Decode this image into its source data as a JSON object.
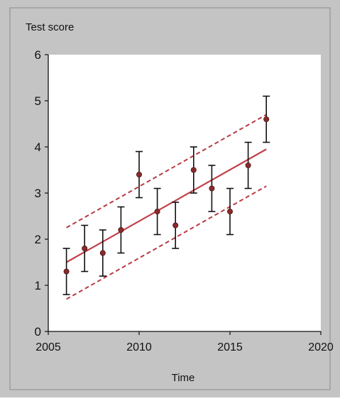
{
  "chart_data": {
    "type": "scatter",
    "ylabel": "Test score",
    "xlabel": "Time",
    "xlim": [
      2005,
      2020
    ],
    "ylim": [
      0,
      6
    ],
    "x_ticks": [
      2005,
      2010,
      2015,
      2020
    ],
    "y_ticks": [
      0,
      1,
      2,
      3,
      4,
      5,
      6
    ],
    "points": [
      {
        "x": 2006,
        "y": 1.3,
        "low": 0.8,
        "high": 1.8
      },
      {
        "x": 2007,
        "y": 1.8,
        "low": 1.3,
        "high": 2.3
      },
      {
        "x": 2008,
        "y": 1.7,
        "low": 1.2,
        "high": 2.2
      },
      {
        "x": 2009,
        "y": 2.2,
        "low": 1.7,
        "high": 2.7
      },
      {
        "x": 2010,
        "y": 3.4,
        "low": 2.9,
        "high": 3.9
      },
      {
        "x": 2011,
        "y": 2.6,
        "low": 2.1,
        "high": 3.1
      },
      {
        "x": 2012,
        "y": 2.3,
        "low": 1.8,
        "high": 2.8
      },
      {
        "x": 2013,
        "y": 3.5,
        "low": 3.0,
        "high": 4.0
      },
      {
        "x": 2014,
        "y": 3.1,
        "low": 2.6,
        "high": 3.6
      },
      {
        "x": 2015,
        "y": 2.6,
        "low": 2.1,
        "high": 3.1
      },
      {
        "x": 2016,
        "y": 3.6,
        "low": 3.1,
        "high": 4.1
      },
      {
        "x": 2017,
        "y": 4.6,
        "low": 4.1,
        "high": 5.1
      }
    ],
    "fit_line": {
      "x": [
        2006,
        2017
      ],
      "y": [
        1.5,
        3.95
      ]
    },
    "interval_upper": {
      "x": [
        2006,
        2017
      ],
      "y": [
        2.25,
        4.7
      ]
    },
    "interval_lower": {
      "x": [
        2006,
        2017
      ],
      "y": [
        0.7,
        3.15
      ]
    },
    "grid": false,
    "legend": "none",
    "colors": {
      "panel_background": "#c4c4c4",
      "plot_background": "#ffffff",
      "fit_line": "#c0404a",
      "interval_lines": "#b83a45",
      "marker": "#8a2a2a",
      "error_bars": "#111111"
    }
  }
}
